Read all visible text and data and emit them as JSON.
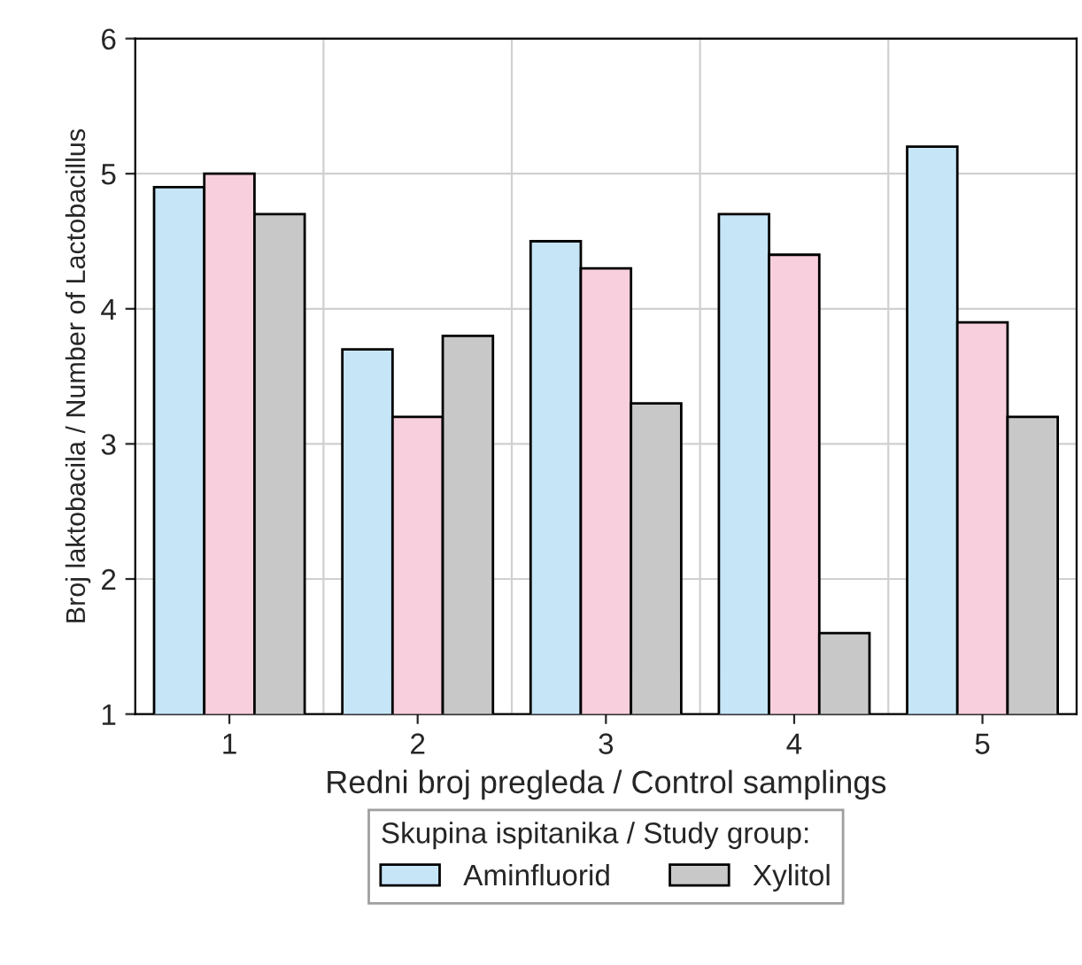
{
  "chart_data": {
    "type": "bar",
    "xlabel": "Redni broj pregleda / Control samplings",
    "ylabel": "Broj laktobacila / Number of Lactobacillus",
    "legend_title": "Skupina ispitanika / Study group:",
    "categories": [
      "1",
      "2",
      "3",
      "4",
      "5"
    ],
    "series": [
      {
        "name": "Aminfluorid",
        "color": "#c6e5f7",
        "values": [
          4.9,
          3.7,
          4.5,
          4.7,
          5.2
        ]
      },
      {
        "color": "#f8cfdc",
        "values": [
          5.0,
          3.2,
          4.3,
          4.4,
          3.9
        ]
      },
      {
        "name": "Xylitol",
        "color": "#c8c8c8",
        "values": [
          4.7,
          3.8,
          3.3,
          1.6,
          3.2
        ]
      }
    ],
    "ylim": [
      1,
      6
    ],
    "yticks": [
      1,
      2,
      3,
      4,
      5,
      6
    ],
    "grid": true,
    "legend": "bottom"
  }
}
